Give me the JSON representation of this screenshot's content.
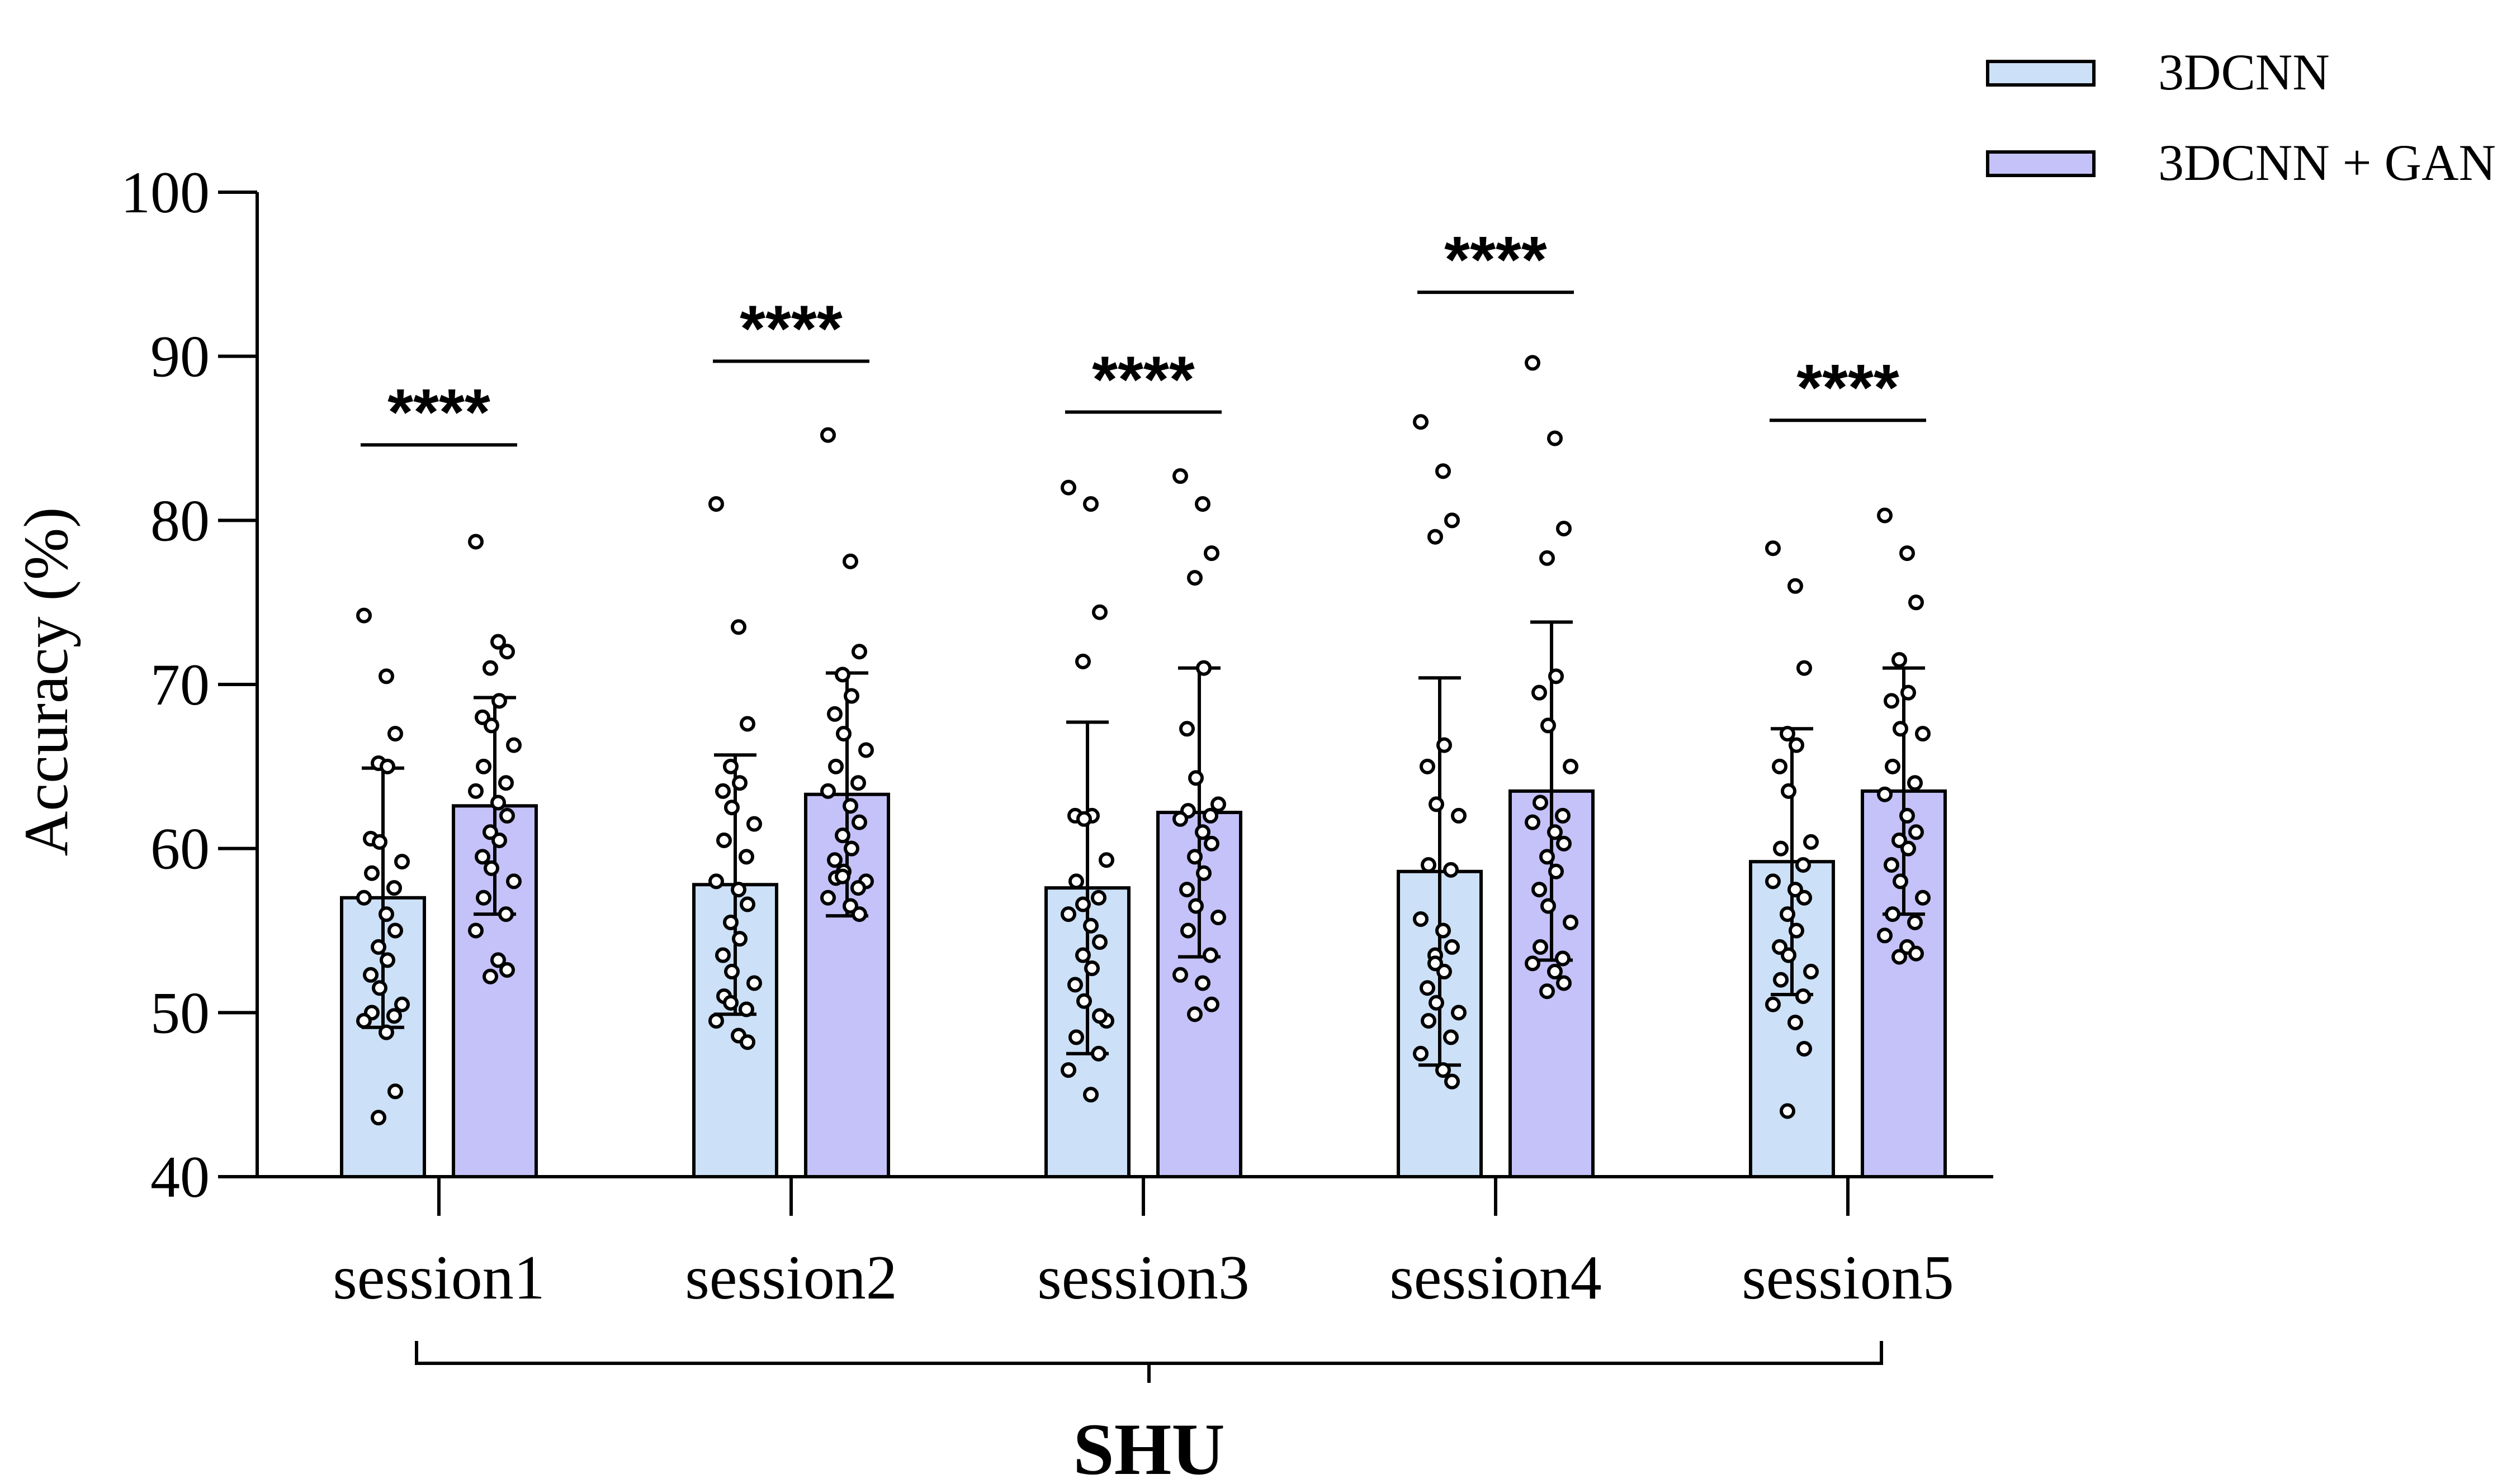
{
  "chart_data": {
    "type": "bar",
    "ylabel": "Accuracy (%)",
    "ylim": [
      40,
      100
    ],
    "yticks": [
      40,
      50,
      60,
      70,
      80,
      90,
      100
    ],
    "categories": [
      "session1",
      "session2",
      "session3",
      "session4",
      "session5"
    ],
    "group_label": "SHU",
    "legend_position": "top-right",
    "grid": false,
    "series": [
      {
        "name": "3DCNN",
        "color": "#cce0f7",
        "values": [
          57.0,
          57.8,
          57.6,
          58.6,
          59.2
        ],
        "sd": [
          7.9,
          7.9,
          10.1,
          11.8,
          8.1
        ],
        "points": [
          [
            74.2,
            70.5,
            67.0,
            65.2,
            65.0,
            60.6,
            60.4,
            59.2,
            58.5,
            57.6,
            57.0,
            56.0,
            55.0,
            54.0,
            53.2,
            52.3,
            51.5,
            50.5,
            50.0,
            49.8,
            49.5,
            48.8,
            45.2,
            43.6
          ],
          [
            81.0,
            73.5,
            67.6,
            65.0,
            64.0,
            63.5,
            62.5,
            61.5,
            60.5,
            59.5,
            58.0,
            57.5,
            56.6,
            55.5,
            54.5,
            53.5,
            52.5,
            51.8,
            51.0,
            50.2,
            49.5,
            48.6,
            48.2,
            50.6
          ],
          [
            82.0,
            81.0,
            74.4,
            71.4,
            62.0,
            62.0,
            61.8,
            59.3,
            58.0,
            57.0,
            56.0,
            55.3,
            54.3,
            53.5,
            52.7,
            51.7,
            50.7,
            49.5,
            48.5,
            47.5,
            46.5,
            45.0,
            49.8,
            56.6
          ],
          [
            86.0,
            83.0,
            80.0,
            79.0,
            66.3,
            65.0,
            62.7,
            62.0,
            59.0,
            58.7,
            55.7,
            55.0,
            54.0,
            53.5,
            52.5,
            51.5,
            50.6,
            50.0,
            49.5,
            48.5,
            47.5,
            46.5,
            45.8,
            53.0
          ],
          [
            78.3,
            76.0,
            71.0,
            67.0,
            66.3,
            65.0,
            63.5,
            60.4,
            60.0,
            59.0,
            58.0,
            57.5,
            57.0,
            56.0,
            55.0,
            54.0,
            53.5,
            52.5,
            52.0,
            51.0,
            50.5,
            49.4,
            47.8,
            44.0
          ]
        ]
      },
      {
        "name": "3DCNN + GAN",
        "color": "#c4c2f8",
        "values": [
          62.6,
          63.3,
          62.2,
          63.5,
          63.5
        ],
        "sd": [
          6.6,
          7.4,
          8.8,
          10.3,
          7.5
        ],
        "points": [
          [
            78.7,
            72.6,
            72.0,
            71.0,
            69.0,
            68.0,
            67.5,
            66.3,
            65.0,
            64.0,
            63.5,
            62.8,
            62.0,
            61.0,
            60.5,
            59.5,
            58.8,
            58.0,
            57.0,
            56.0,
            55.0,
            53.2,
            52.6,
            52.2
          ],
          [
            85.2,
            77.5,
            72.0,
            70.6,
            69.3,
            68.2,
            67.0,
            66.0,
            65.0,
            64.0,
            63.5,
            62.6,
            61.6,
            60.8,
            60.0,
            59.3,
            58.6,
            58.0,
            58.2,
            57.6,
            57.0,
            56.5,
            56.0,
            58.3
          ],
          [
            82.7,
            81.0,
            78.0,
            76.5,
            71.0,
            67.3,
            64.3,
            62.7,
            62.3,
            62.0,
            61.8,
            61.0,
            60.3,
            59.5,
            58.5,
            57.5,
            56.5,
            55.8,
            55.0,
            53.5,
            52.3,
            51.8,
            50.5,
            49.9
          ],
          [
            89.6,
            85.0,
            79.5,
            77.7,
            70.5,
            69.5,
            67.5,
            65.0,
            62.8,
            62.0,
            61.6,
            61.0,
            60.3,
            59.5,
            58.6,
            57.5,
            56.5,
            55.5,
            54.0,
            53.3,
            53.0,
            52.5,
            51.8,
            51.3
          ],
          [
            80.3,
            78.0,
            75.0,
            71.5,
            69.5,
            69.0,
            67.3,
            67.0,
            65.0,
            64.0,
            63.3,
            62.0,
            61.0,
            60.5,
            60.0,
            59.0,
            58.0,
            57.0,
            56.0,
            55.5,
            54.7,
            54.0,
            53.6,
            53.4
          ]
        ]
      }
    ],
    "annotations": {
      "significance": [
        "****",
        "****",
        "****",
        "****",
        "****"
      ],
      "sig_y": [
        84.6,
        89.7,
        86.6,
        93.9,
        86.1
      ]
    }
  }
}
